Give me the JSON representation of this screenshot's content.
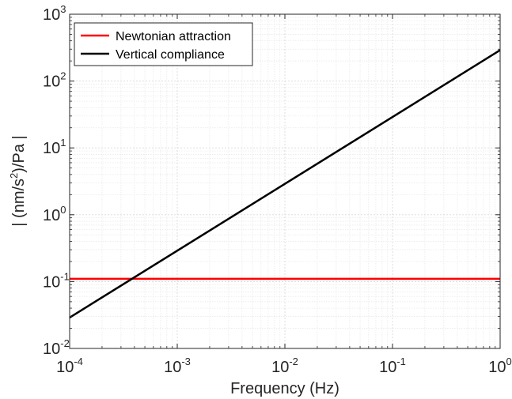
{
  "chart_data": {
    "type": "line",
    "xscale": "log",
    "yscale": "log",
    "xlim": [
      0.0001,
      1
    ],
    "ylim": [
      0.01,
      1000
    ],
    "xlabel": "Frequency (Hz)",
    "ylabel": {
      "before": "| (nm/s",
      "sup": "2",
      "after": ")/Pa |"
    },
    "xticks": [
      {
        "base": "10",
        "exp": "-4",
        "value": 0.0001
      },
      {
        "base": "10",
        "exp": "-3",
        "value": 0.001
      },
      {
        "base": "10",
        "exp": "-2",
        "value": 0.01
      },
      {
        "base": "10",
        "exp": "-1",
        "value": 0.1
      },
      {
        "base": "10",
        "exp": "0",
        "value": 1
      }
    ],
    "yticks": [
      {
        "base": "10",
        "exp": "-2",
        "value": 0.01
      },
      {
        "base": "10",
        "exp": "-1",
        "value": 0.1
      },
      {
        "base": "10",
        "exp": "0",
        "value": 1
      },
      {
        "base": "10",
        "exp": "1",
        "value": 10
      },
      {
        "base": "10",
        "exp": "2",
        "value": 100
      },
      {
        "base": "10",
        "exp": "3",
        "value": 1000
      }
    ],
    "grid": true,
    "minor_grid": true,
    "legend_position": "top-left",
    "series": [
      {
        "name": "Newtonian attraction",
        "color": "#ff0000",
        "x": [
          0.0001,
          1
        ],
        "y": [
          0.11,
          0.11
        ]
      },
      {
        "name": "Vertical compliance",
        "color": "#000000",
        "x": [
          0.0001,
          1
        ],
        "y": [
          0.029,
          290
        ]
      }
    ]
  }
}
